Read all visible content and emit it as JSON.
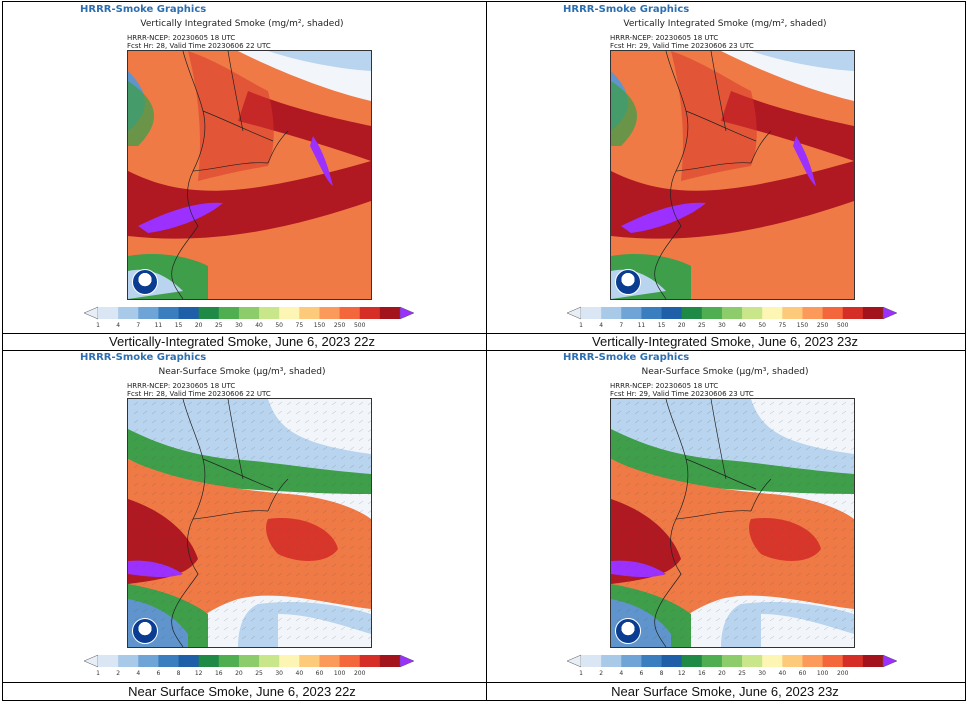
{
  "brand": "HRRR-Smoke Graphics",
  "panels": [
    {
      "title": "Vertically Integrated Smoke (mg/m², shaded)",
      "meta_line1": "HRRR-NCEP: 20230605 18 UTC",
      "meta_line2": "Fcst Hr: 28, Valid Time 20230606 22 UTC",
      "caption": "Vertically-Integrated Smoke, June 6, 2023 22z",
      "legend_ticks": [
        "1",
        "4",
        "7",
        "11",
        "15",
        "20",
        "25",
        "30",
        "40",
        "50",
        "75",
        "150",
        "250",
        "500"
      ],
      "variant": "vi"
    },
    {
      "title": "Vertically Integrated Smoke (mg/m², shaded)",
      "meta_line1": "HRRR-NCEP: 20230605 18 UTC",
      "meta_line2": "Fcst Hr: 29, Valid Time 20230606 23 UTC",
      "caption": "Vertically-Integrated Smoke, June 6, 2023 23z",
      "legend_ticks": [
        "1",
        "4",
        "7",
        "11",
        "15",
        "20",
        "25",
        "30",
        "40",
        "50",
        "75",
        "150",
        "250",
        "500"
      ],
      "variant": "vi"
    },
    {
      "title": "Near-Surface Smoke (µg/m³, shaded)",
      "meta_line1": "HRRR-NCEP: 20230605 18 UTC",
      "meta_line2": "Fcst Hr: 28, Valid Time 20230606 22 UTC",
      "caption": "Near Surface Smoke, June 6, 2023 22z",
      "legend_ticks": [
        "1",
        "2",
        "4",
        "6",
        "8",
        "12",
        "16",
        "20",
        "25",
        "30",
        "40",
        "60",
        "100",
        "200"
      ],
      "variant": "ns"
    },
    {
      "title": "Near-Surface Smoke (µg/m³, shaded)",
      "meta_line1": "HRRR-NCEP: 20230605 18 UTC",
      "meta_line2": "Fcst Hr: 29, Valid Time 20230606 23 UTC",
      "caption": "Near Surface Smoke, June 6, 2023 23z",
      "legend_ticks": [
        "1",
        "2",
        "4",
        "6",
        "8",
        "12",
        "16",
        "20",
        "25",
        "30",
        "40",
        "60",
        "100",
        "200"
      ],
      "variant": "ns"
    }
  ],
  "colorbar_colors": [
    "#dbe6f4",
    "#a9c9e8",
    "#6fa5d6",
    "#3a7ebf",
    "#1f5fa8",
    "#1f8a46",
    "#4fae4f",
    "#8ccc6a",
    "#c9e68a",
    "#fdf5b4",
    "#fdc97a",
    "#fb9a5a",
    "#f4673c",
    "#d52e27",
    "#a3131c"
  ],
  "colorbar_low_color": "#e8eef6",
  "colorbar_high_color": "#9b30ff",
  "map_colors": {
    "ocean_low": "#f2f6fb",
    "light_blue": "#b9d4ee",
    "blue": "#5f95cc",
    "green": "#3e9e4a",
    "light_green": "#a9d47a",
    "yellow": "#f3e99a",
    "orange_light": "#f7a564",
    "orange": "#ef7a45",
    "red": "#d9362b",
    "dark_red": "#b01822",
    "purple": "#9b30ff"
  }
}
